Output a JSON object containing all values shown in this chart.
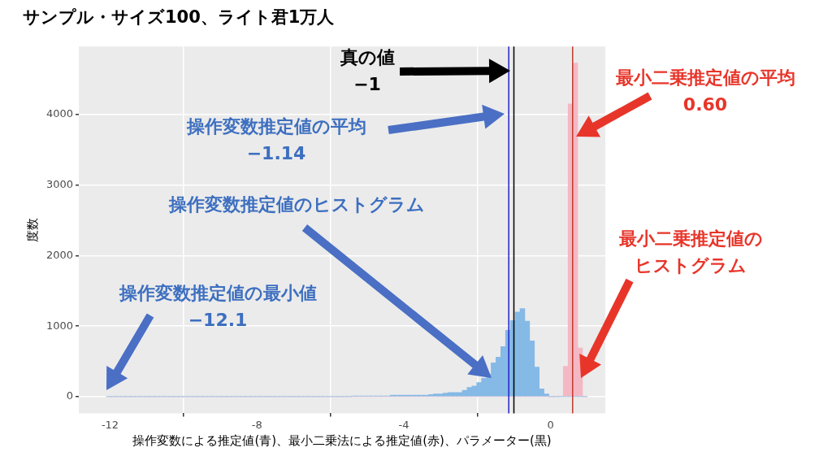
{
  "chart_data": {
    "type": "histogram",
    "title": "サンプル・サイズ100、ライト君1万人",
    "xlabel": "操作変数による推定値(青)、最小二乗法による推定値(赤)、パラメーター(黒)",
    "ylabel": "度数",
    "bins": [
      -12.1,
      -11.969,
      -11.838,
      -11.707,
      -11.576,
      -11.445,
      -11.314,
      -11.183,
      -11.052,
      -10.921,
      -10.79,
      -10.659,
      -10.528,
      -10.397,
      -10.266,
      -10.135,
      -10.004,
      -9.873,
      -9.742,
      -9.611,
      -9.48,
      -9.349,
      -9.218,
      -9.087,
      -8.956,
      -8.825,
      -8.694,
      -8.563,
      -8.432,
      -8.301,
      -8.17,
      -8.039,
      -7.908,
      -7.777,
      -7.646,
      -7.515,
      -7.384,
      -7.253,
      -7.122,
      -6.991,
      -6.86,
      -6.729,
      -6.598,
      -6.467,
      -6.336,
      -6.205,
      -6.074,
      -5.943,
      -5.812,
      -5.681,
      -5.55,
      -5.419,
      -5.288,
      -5.157,
      -5.026,
      -4.895,
      -4.764,
      -4.633,
      -4.502,
      -4.371,
      -4.24,
      -4.109,
      -3.978,
      -3.847,
      -3.716,
      -3.585,
      -3.454,
      -3.323,
      -3.192,
      -3.061,
      -2.93,
      -2.799,
      -2.668,
      -2.537,
      -2.406,
      -2.275,
      -2.144,
      -2.013,
      -1.882,
      -1.751,
      -1.62,
      -1.489,
      -1.358,
      -1.227,
      -1.096,
      -0.965,
      -0.834,
      -0.703,
      -0.572,
      -0.441,
      -0.31,
      -0.179,
      -0.048,
      0.083,
      0.214,
      0.345,
      0.476,
      0.607,
      0.738,
      0.869,
      1.0
    ],
    "series": [
      {
        "color": "#85b9e6",
        "values": [
          0,
          0,
          0,
          0,
          0,
          0,
          0,
          0,
          0,
          0,
          0,
          0,
          0,
          0,
          0,
          0,
          0,
          0,
          0,
          0,
          0,
          0,
          0,
          0,
          0,
          0,
          0,
          0,
          0,
          0,
          0,
          0,
          0,
          0,
          0,
          0,
          0,
          0,
          0,
          0,
          0,
          0,
          0,
          0,
          0,
          0,
          0,
          0,
          0,
          0,
          0,
          10,
          10,
          10,
          10,
          10,
          10,
          10,
          10,
          20,
          20,
          20,
          20,
          20,
          20,
          20,
          20,
          30,
          40,
          40,
          50,
          60,
          60,
          60,
          90,
          130,
          150,
          200,
          260,
          320,
          480,
          560,
          710,
          940,
          1080,
          1200,
          1250,
          1070,
          790,
          420,
          110,
          40,
          0,
          0,
          0,
          0,
          0,
          0,
          0,
          0
        ]
      },
      {
        "color": "#f4b8c4",
        "values": [
          0,
          0,
          0,
          0,
          0,
          0,
          0,
          0,
          0,
          0,
          0,
          0,
          0,
          0,
          0,
          0,
          0,
          0,
          0,
          0,
          0,
          0,
          0,
          0,
          0,
          0,
          0,
          0,
          0,
          0,
          0,
          0,
          0,
          0,
          0,
          0,
          0,
          0,
          0,
          0,
          0,
          0,
          0,
          0,
          0,
          0,
          0,
          0,
          0,
          0,
          0,
          0,
          0,
          0,
          0,
          0,
          0,
          0,
          0,
          0,
          0,
          0,
          0,
          0,
          0,
          0,
          0,
          0,
          0,
          0,
          0,
          0,
          0,
          0,
          0,
          0,
          0,
          0,
          0,
          0,
          0,
          0,
          0,
          0,
          0,
          0,
          0,
          0,
          0,
          0,
          0,
          0,
          0,
          0,
          10,
          430,
          4150,
          4730,
          690,
          0
        ]
      }
    ],
    "xlim": [
      -12.85,
      1.49
    ],
    "xticks": [
      -12,
      -8,
      -4,
      0
    ],
    "ylim": [
      -236,
      4965
    ],
    "yticks": [
      0,
      1000,
      2000,
      3000,
      4000
    ],
    "grid": true,
    "ref_lines": [
      {
        "axis": "x",
        "value": -1.14,
        "color": "#2222cc"
      },
      {
        "axis": "x",
        "value": -1,
        "color": "#000000"
      },
      {
        "axis": "x",
        "value": 0.6,
        "color": "#c0392b"
      }
    ],
    "annotations": [
      "真の値\n−1",
      "操作変数推定値の平均\n−1.14",
      "最小二乗推定値の平均\n0.60",
      "操作変数推定値のヒストグラム",
      "操作変数推定値の最小値\n−12.1",
      "最小二乗推定値のヒストグラム"
    ]
  }
}
